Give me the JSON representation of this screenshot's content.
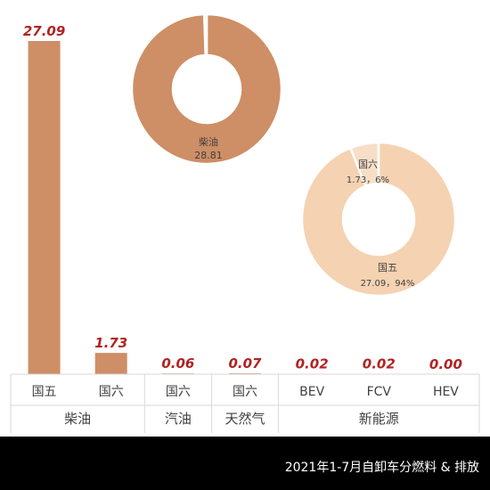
{
  "chart_data": {
    "type": "bar",
    "bars": [
      {
        "group": "柴油",
        "category": "国五",
        "value": 27.09,
        "label": "27.09"
      },
      {
        "group": "柴油",
        "category": "国六",
        "value": 1.73,
        "label": "1.73"
      },
      {
        "group": "汽油",
        "category": "国六",
        "value": 0.06,
        "label": "0.06"
      },
      {
        "group": "天然气",
        "category": "国六",
        "value": 0.07,
        "label": "0.07"
      },
      {
        "group": "新能源",
        "category": "BEV",
        "value": 0.02,
        "label": "0.02"
      },
      {
        "group": "新能源",
        "category": "FCV",
        "value": 0.02,
        "label": "0.02"
      },
      {
        "group": "新能源",
        "category": "HEV",
        "value": 0.0,
        "label": "0.00"
      }
    ],
    "groups": [
      "柴油",
      "汽油",
      "天然气",
      "新能源"
    ],
    "ylim": [
      0,
      27.09
    ],
    "pies": [
      {
        "slices": [
          {
            "label": "柴油",
            "value": 28.81,
            "value_label": "28.81"
          },
          {
            "label": "",
            "value": 0.15,
            "value_label": ""
          }
        ]
      },
      {
        "slices": [
          {
            "label": "国五",
            "value": 27.09,
            "value_label": "27.09，94%"
          },
          {
            "label": "国六",
            "value": 1.73,
            "value_label": "1.73，6%"
          }
        ]
      }
    ],
    "colors": {
      "bar": "#CE8E66",
      "bar_label": "#B22222",
      "pie1": "#CE8E66",
      "pie2_main": "#F4D2B2",
      "pie2_small": "#F7DEC6",
      "grid": "#D9D9D9",
      "axis_text": "#404040",
      "pie_text": "#404040"
    }
  },
  "footer": {
    "caption": "2021年1-7月自卸车分燃料 & 排放"
  }
}
